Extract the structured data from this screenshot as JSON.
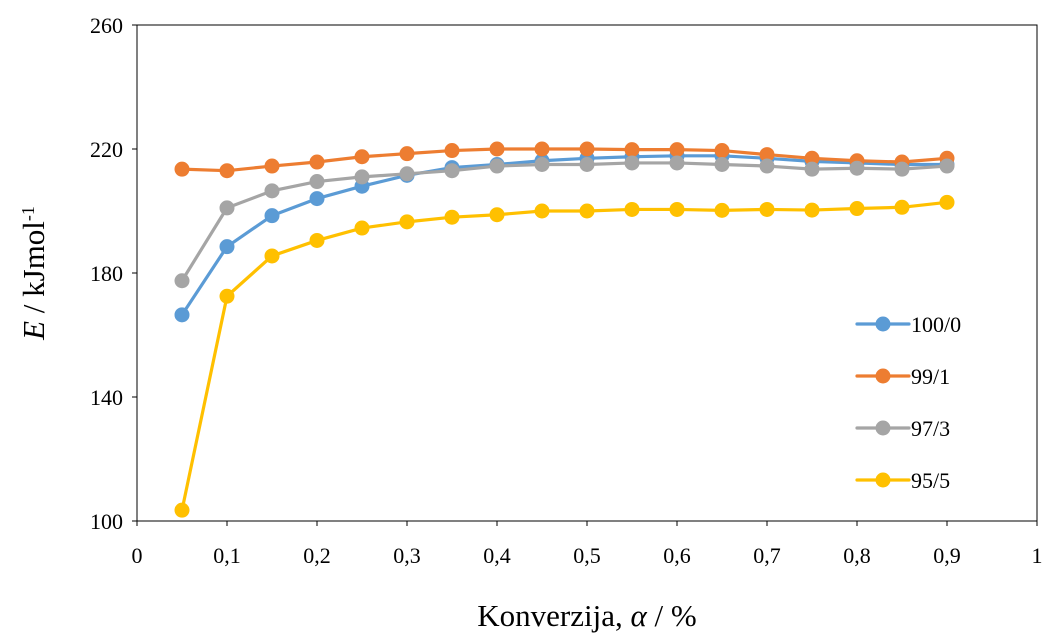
{
  "chart_data": {
    "type": "line",
    "x": [
      0.05,
      0.1,
      0.15,
      0.2,
      0.25,
      0.3,
      0.35,
      0.4,
      0.45,
      0.5,
      0.55,
      0.6,
      0.65,
      0.7,
      0.75,
      0.8,
      0.85,
      0.9
    ],
    "series": [
      {
        "name": "100/0",
        "color": "#5B9BD5",
        "values": [
          166.5,
          188.5,
          198.5,
          204,
          208,
          211.5,
          214,
          215,
          216.2,
          217,
          217.5,
          217.8,
          217.8,
          217,
          216,
          215.5,
          215,
          215
        ]
      },
      {
        "name": "99/1",
        "color": "#ED7D31",
        "values": [
          213.5,
          213,
          214.5,
          215.8,
          217.5,
          218.5,
          219.5,
          220,
          220,
          220,
          219.8,
          219.8,
          219.5,
          218.2,
          217,
          216.2,
          215.8,
          217
        ]
      },
      {
        "name": "97/3",
        "color": "#A5A5A5",
        "values": [
          177.5,
          201,
          206.5,
          209.5,
          211,
          212,
          213,
          214.5,
          215,
          215,
          215.5,
          215.5,
          215,
          214.5,
          213.5,
          213.8,
          213.5,
          214.5
        ]
      },
      {
        "name": "95/5",
        "color": "#FFC000",
        "values": [
          103.5,
          172.5,
          185.5,
          190.5,
          194.5,
          196.5,
          198,
          198.8,
          200,
          200,
          200.5,
          200.5,
          200.2,
          200.5,
          200.3,
          200.8,
          201.2,
          202.8
        ]
      }
    ],
    "xlim": [
      0,
      1
    ],
    "ylim": [
      100,
      260
    ],
    "xticks": [
      0,
      0.1,
      0.2,
      0.3,
      0.4,
      0.5,
      0.6,
      0.7,
      0.8,
      0.9,
      1
    ],
    "xtick_labels": [
      "0",
      "0,1",
      "0,2",
      "0,3",
      "0,4",
      "0,5",
      "0,6",
      "0,7",
      "0,8",
      "0,9",
      "1"
    ],
    "yticks": [
      100,
      140,
      180,
      220,
      260
    ],
    "ytick_labels": [
      "100",
      "140",
      "180",
      "220",
      "260"
    ],
    "xlabel": {
      "prefix": "Konverzija, ",
      "symbol": "α",
      "suffix": " / %"
    },
    "ylabel": {
      "symbol": "E",
      "middle": " / kJmol",
      "superscript": "-1"
    },
    "legend": "right",
    "grid": false
  }
}
